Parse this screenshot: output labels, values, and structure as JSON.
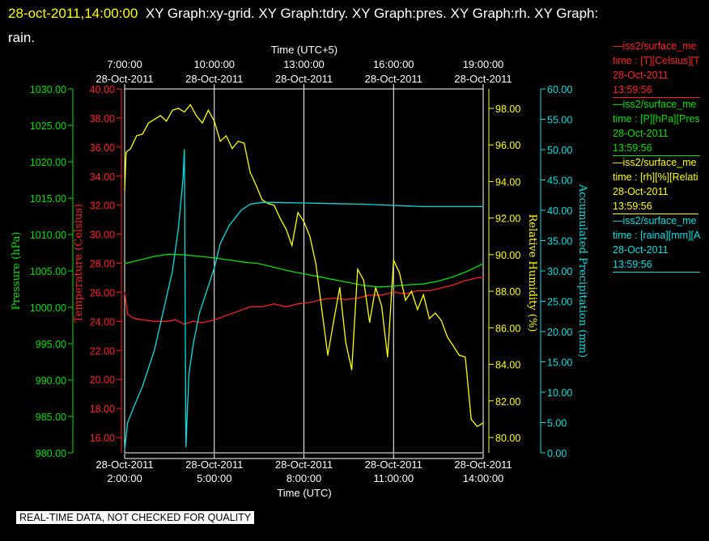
{
  "header": {
    "timestamp": "28-oct-2011,14:00:00",
    "graphs": "XY Graph:xy-grid.  XY Graph:tdry.  XY Graph:pres.  XY Graph:rh.  XY Graph:",
    "graphs_cont": "rain."
  },
  "legend": [
    {
      "series": "—iss2/surface_me",
      "var": "time : [T][Celsius][T",
      "date": "28-Oct-2011",
      "time": "13:59:56",
      "color": "#ff2020"
    },
    {
      "series": "—iss2/surface_me",
      "var": "time : [P][hPa][Pres",
      "date": "28-Oct-2011",
      "time": "13:59:56",
      "color": "#00e000"
    },
    {
      "series": "—iss2/surface_me",
      "var": "time : [rh][%][Relati",
      "date": "28-Oct-2011",
      "time": "13:59:56",
      "color": "#ffff00"
    },
    {
      "series": "—iss2/surface_me",
      "var": "time : [raina][mm][A",
      "date": "28-Oct-2011",
      "time": "13:59:56",
      "color": "#00e0e0"
    }
  ],
  "footer": {
    "qc_notice": "REAL-TIME DATA, NOT CHECKED FOR QUALITY"
  },
  "chart_data": {
    "type": "line",
    "top_axis": {
      "label": "Time (UTC+5)",
      "ticks": [
        {
          "time": "7:00:00",
          "date": "28-Oct-2011"
        },
        {
          "time": "10:00:00",
          "date": "28-Oct-2011"
        },
        {
          "time": "13:00:00",
          "date": "28-Oct-2011"
        },
        {
          "time": "16:00:00",
          "date": "28-Oct-2011"
        },
        {
          "time": "19:00:00",
          "date": "28-Oct-2011"
        }
      ]
    },
    "bottom_axis": {
      "label": "Time (UTC)",
      "xlim": [
        2.0,
        14.0
      ],
      "ticks": [
        {
          "date": "28-Oct-2011",
          "time": "2:00:00",
          "x": 2
        },
        {
          "date": "28-Oct-2011",
          "time": "5:00:00",
          "x": 5
        },
        {
          "date": "28-Oct-2011",
          "time": "8:00:00",
          "x": 8
        },
        {
          "date": "28-Oct-2011",
          "time": "11:00:00",
          "x": 11
        },
        {
          "date": "28-Oct-2011",
          "time": "14:00:00",
          "x": 14
        }
      ]
    },
    "grid_x": [
      5,
      8,
      11
    ],
    "y_axes": [
      {
        "id": "pres",
        "label": "Pressure (hPa)",
        "color": "#00e000",
        "ylim": [
          980,
          1030
        ],
        "ticks": [
          "980.00",
          "985.00",
          "990.00",
          "995.00",
          "1000.00",
          "1005.00",
          "1010.00",
          "1015.00",
          "1020.00",
          "1025.00",
          "1030.00"
        ]
      },
      {
        "id": "tdry",
        "label": "Temperature (Celsius)",
        "color": "#ff2020",
        "ylim": [
          15,
          40
        ],
        "ticks": [
          "16.00",
          "18.00",
          "20.00",
          "22.00",
          "24.00",
          "26.00",
          "28.00",
          "30.00",
          "32.00",
          "34.00",
          "36.00",
          "38.00",
          "40.00"
        ]
      },
      {
        "id": "rh",
        "label": "Relative Humidity (%)",
        "color": "#ffff00",
        "ylim": [
          79.5,
          99.2
        ],
        "ticks": [
          "80.00",
          "82.00",
          "84.00",
          "86.00",
          "88.00",
          "90.00",
          "92.00",
          "94.00",
          "96.00",
          "98.00"
        ]
      },
      {
        "id": "rain",
        "label": "Accumulated Precipitation (mm)",
        "color": "#00e0e0",
        "ylim": [
          0,
          60
        ],
        "ticks": [
          "0.00",
          "5.00",
          "10.00",
          "15.00",
          "20.00",
          "25.00",
          "30.00",
          "35.00",
          "40.00",
          "45.00",
          "50.00",
          "55.00",
          "60.00"
        ]
      }
    ],
    "series": [
      {
        "id": "tdry",
        "axis": "tdry",
        "color": "#ff2020",
        "x": [
          2.0,
          2.1,
          2.3,
          2.6,
          3.0,
          3.4,
          3.7,
          4.0,
          4.3,
          4.6,
          5.0,
          5.4,
          5.8,
          6.2,
          6.6,
          7.0,
          7.4,
          7.8,
          8.2,
          8.6,
          9.0,
          9.4,
          9.8,
          10.2,
          10.6,
          11.0,
          11.4,
          11.8,
          12.2,
          12.6,
          13.0,
          13.4,
          13.8,
          14.0
        ],
        "y": [
          26.0,
          24.5,
          24.2,
          24.1,
          24.0,
          24.0,
          24.1,
          23.8,
          24.0,
          23.9,
          24.1,
          24.4,
          24.7,
          25.0,
          25.0,
          25.2,
          25.0,
          25.2,
          25.3,
          25.5,
          25.6,
          25.5,
          25.6,
          25.8,
          25.8,
          26.0,
          25.9,
          26.1,
          26.1,
          26.3,
          26.5,
          26.8,
          27.0,
          27.0
        ]
      },
      {
        "id": "pres",
        "axis": "pres",
        "color": "#00e000",
        "x": [
          2.0,
          2.5,
          3.0,
          3.5,
          4.0,
          4.5,
          5.0,
          5.5,
          6.0,
          6.5,
          7.0,
          7.5,
          8.0,
          8.5,
          9.0,
          9.5,
          10.0,
          10.5,
          11.0,
          11.5,
          12.0,
          12.5,
          13.0,
          13.5,
          14.0
        ],
        "y": [
          1006.0,
          1006.5,
          1007.0,
          1007.3,
          1007.2,
          1007.0,
          1006.8,
          1006.5,
          1006.2,
          1006.0,
          1005.5,
          1005.0,
          1004.6,
          1004.2,
          1003.8,
          1003.4,
          1003.0,
          1002.8,
          1002.9,
          1003.1,
          1003.2,
          1003.6,
          1004.2,
          1005.0,
          1006.0
        ]
      },
      {
        "id": "rh",
        "axis": "rh",
        "color": "#ffff00",
        "x": [
          2.0,
          2.05,
          2.2,
          2.4,
          2.6,
          2.8,
          3.0,
          3.2,
          3.4,
          3.6,
          3.8,
          4.0,
          4.2,
          4.4,
          4.6,
          4.8,
          5.0,
          5.2,
          5.4,
          5.6,
          5.8,
          6.0,
          6.2,
          6.4,
          6.6,
          6.8,
          7.0,
          7.2,
          7.4,
          7.6,
          7.8,
          8.0,
          8.2,
          8.4,
          8.6,
          8.8,
          9.0,
          9.2,
          9.4,
          9.6,
          9.8,
          10.0,
          10.2,
          10.4,
          10.6,
          10.8,
          11.0,
          11.2,
          11.4,
          11.6,
          11.8,
          12.0,
          12.2,
          12.4,
          12.6,
          12.8,
          13.0,
          13.2,
          13.4,
          13.6,
          13.8,
          14.0
        ],
        "y": [
          93.5,
          95.6,
          95.8,
          96.5,
          96.6,
          97.2,
          97.4,
          97.6,
          97.3,
          97.9,
          98.0,
          97.8,
          98.2,
          97.6,
          97.2,
          97.9,
          97.3,
          96.2,
          96.5,
          95.8,
          96.2,
          96.1,
          94.5,
          93.8,
          93.0,
          92.8,
          92.7,
          92.0,
          91.4,
          90.5,
          92.3,
          91.8,
          91.0,
          89.5,
          87.0,
          84.5,
          86.4,
          88.2,
          85.2,
          83.7,
          89.2,
          88.6,
          86.3,
          88.2,
          87.2,
          84.4,
          89.7,
          89.0,
          87.5,
          88.0,
          87.0,
          87.8,
          86.5,
          86.8,
          86.4,
          85.5,
          85.0,
          84.5,
          84.4,
          81.0,
          80.6,
          80.8
        ]
      },
      {
        "id": "rain",
        "axis": "rain",
        "color": "#00e0e0",
        "x": [
          2.0,
          2.1,
          2.3,
          2.6,
          3.0,
          3.3,
          3.6,
          3.8,
          3.95,
          4.0,
          4.05,
          4.15,
          4.3,
          4.5,
          4.8,
          5.0,
          5.2,
          5.5,
          5.9,
          6.2,
          6.6,
          7.0,
          8.0,
          9.0,
          10.0,
          11.0,
          12.0,
          13.0,
          14.0
        ],
        "y": [
          0.5,
          5.0,
          7.5,
          11.0,
          17.0,
          23.5,
          30.0,
          37.0,
          45.0,
          50.0,
          1.0,
          13.0,
          18.0,
          23.0,
          27.5,
          30.5,
          34.5,
          37.5,
          40.0,
          41.0,
          41.3,
          41.3,
          41.2,
          41.1,
          41.0,
          40.8,
          40.6,
          40.6,
          40.6
        ]
      }
    ]
  }
}
